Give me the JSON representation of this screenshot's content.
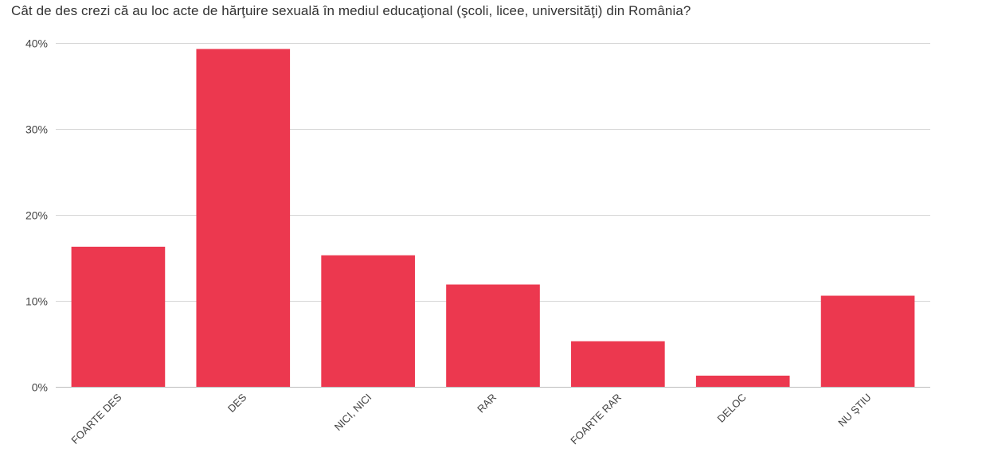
{
  "chart_data": {
    "type": "bar",
    "title": "Cât de des crezi că au loc acte de hărţuire sexuală în mediul educaţional (şcoli, licee, universităţi) din România?",
    "xlabel": "",
    "ylabel": "",
    "categories": [
      "FOARTE DES",
      "DES",
      "NICI, NICI",
      "RAR",
      "FOARTE RAR",
      "DELOC",
      "NU ŞTIU"
    ],
    "values": [
      16.3,
      39.3,
      15.3,
      11.9,
      5.3,
      1.3,
      10.6
    ],
    "ylim": [
      0,
      40
    ],
    "yticks": [
      0,
      10,
      20,
      30,
      40
    ],
    "ytick_labels": [
      "0%",
      "10%",
      "20%",
      "30%",
      "40%"
    ],
    "grid": true,
    "legend": "none",
    "bar_color": "#ec384f"
  }
}
